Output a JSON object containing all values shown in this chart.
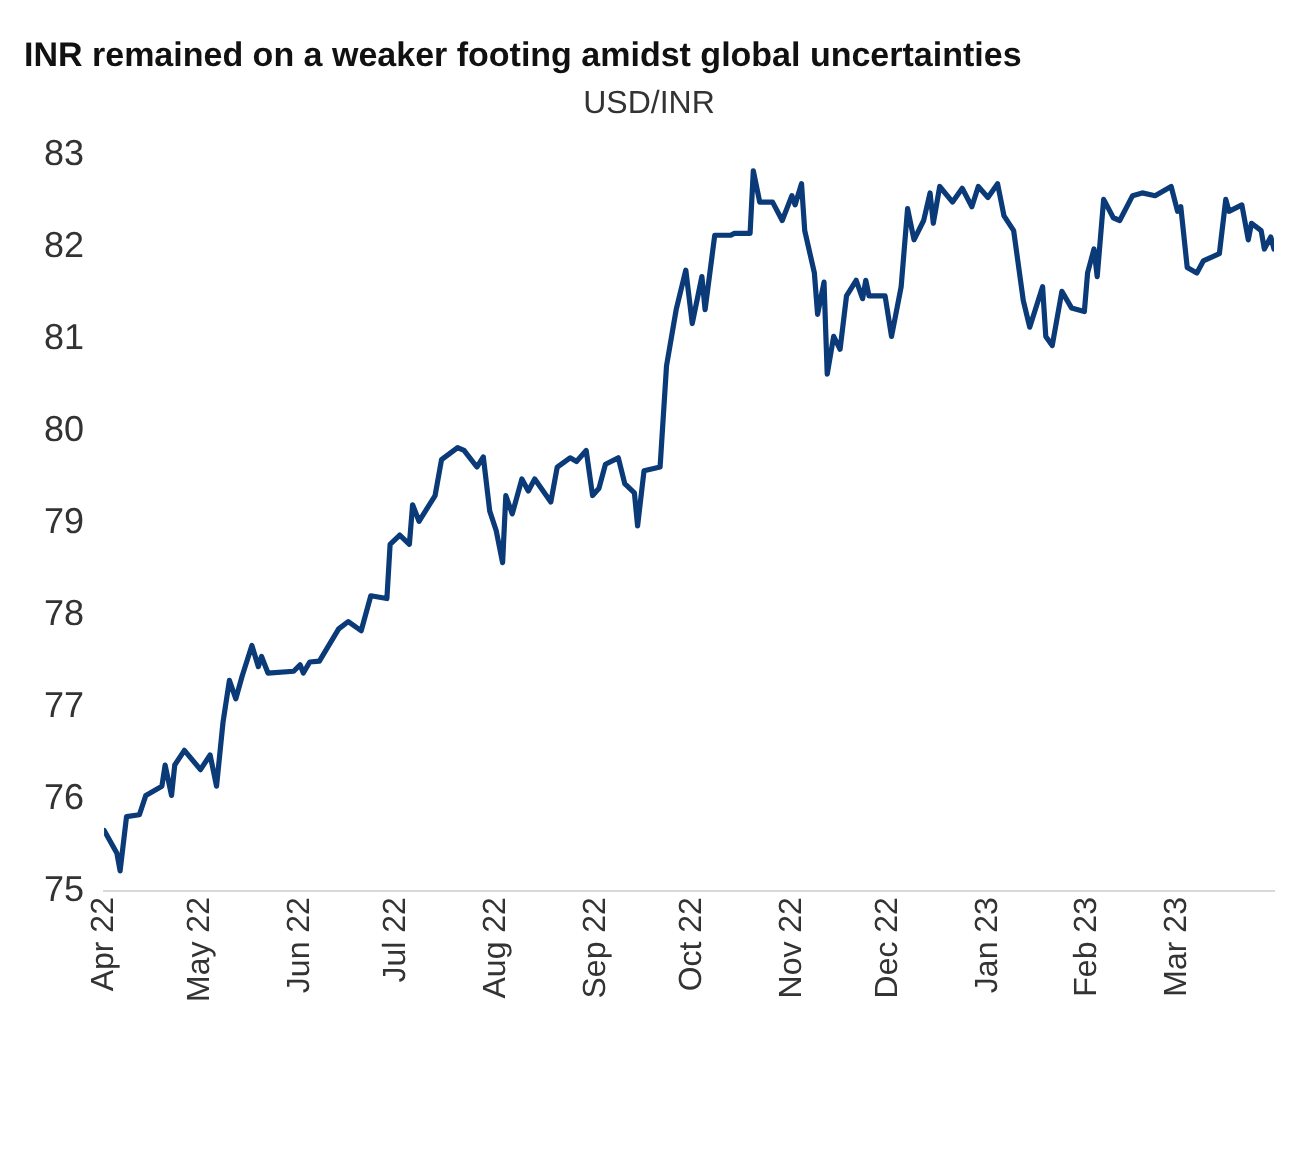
{
  "chart_data": {
    "type": "line",
    "title": "INR remained on a weaker footing amidst global uncertainties",
    "subtitle": "USD/INR",
    "x": [
      "2022-04-01",
      "2022-04-05",
      "2022-04-06",
      "2022-04-08",
      "2022-04-12",
      "2022-04-14",
      "2022-04-19",
      "2022-04-20",
      "2022-04-22",
      "2022-04-23",
      "2022-04-26",
      "2022-05-01",
      "2022-05-04",
      "2022-05-06",
      "2022-05-08",
      "2022-05-10",
      "2022-05-12",
      "2022-05-14",
      "2022-05-17",
      "2022-05-19",
      "2022-05-20",
      "2022-05-22",
      "2022-05-30",
      "2022-06-01",
      "2022-06-02",
      "2022-06-04",
      "2022-06-07",
      "2022-06-13",
      "2022-06-16",
      "2022-06-20",
      "2022-06-23",
      "2022-06-28",
      "2022-06-29",
      "2022-07-02",
      "2022-07-05",
      "2022-07-06",
      "2022-07-08",
      "2022-07-13",
      "2022-07-15",
      "2022-07-20",
      "2022-07-22",
      "2022-07-26",
      "2022-07-28",
      "2022-07-30",
      "2022-08-01",
      "2022-08-03",
      "2022-08-04",
      "2022-08-06",
      "2022-08-09",
      "2022-08-11",
      "2022-08-13",
      "2022-08-18",
      "2022-08-20",
      "2022-08-24",
      "2022-08-26",
      "2022-08-29",
      "2022-08-31",
      "2022-09-02",
      "2022-09-04",
      "2022-09-08",
      "2022-09-10",
      "2022-09-13",
      "2022-09-14",
      "2022-09-16",
      "2022-09-21",
      "2022-09-23",
      "2022-09-26",
      "2022-09-29",
      "2022-10-01",
      "2022-10-04",
      "2022-10-05",
      "2022-10-08",
      "2022-10-13",
      "2022-10-14",
      "2022-10-19",
      "2022-10-20",
      "2022-10-22",
      "2022-10-26",
      "2022-10-29",
      "2022-11-01",
      "2022-11-02",
      "2022-11-04",
      "2022-11-05",
      "2022-11-08",
      "2022-11-09",
      "2022-11-11",
      "2022-11-12",
      "2022-11-14",
      "2022-11-16",
      "2022-11-18",
      "2022-11-21",
      "2022-11-23",
      "2022-11-24",
      "2022-11-25",
      "2022-11-30",
      "2022-12-02",
      "2022-12-05",
      "2022-12-07",
      "2022-12-09",
      "2022-12-12",
      "2022-12-14",
      "2022-12-15",
      "2022-12-17",
      "2022-12-21",
      "2022-12-24",
      "2022-12-27",
      "2022-12-29",
      "2023-01-01",
      "2023-01-04",
      "2023-01-06",
      "2023-01-09",
      "2023-01-12",
      "2023-01-14",
      "2023-01-18",
      "2023-01-19",
      "2023-01-21",
      "2023-01-24",
      "2023-01-27",
      "2023-01-31",
      "2023-02-01",
      "2023-02-03",
      "2023-02-04",
      "2023-02-06",
      "2023-02-09",
      "2023-02-11",
      "2023-02-15",
      "2023-02-18",
      "2023-02-22",
      "2023-02-27",
      "2023-03-01",
      "2023-03-02",
      "2023-03-04",
      "2023-03-07",
      "2023-03-09",
      "2023-03-14",
      "2023-03-16",
      "2023-03-17",
      "2023-03-21",
      "2023-03-23",
      "2023-03-24",
      "2023-03-27",
      "2023-03-28",
      "2023-03-30",
      "2023-03-31"
    ],
    "series": [
      {
        "color": "#0b3a78",
        "values": [
          75.66,
          75.41,
          75.22,
          75.81,
          75.83,
          76.04,
          76.14,
          76.37,
          76.04,
          76.37,
          76.53,
          76.32,
          76.48,
          76.14,
          76.83,
          77.29,
          77.09,
          77.34,
          77.67,
          77.44,
          77.55,
          77.37,
          77.39,
          77.46,
          77.37,
          77.49,
          77.5,
          77.85,
          77.93,
          77.83,
          78.21,
          78.18,
          78.77,
          78.87,
          78.77,
          79.2,
          79.02,
          79.3,
          79.69,
          79.82,
          79.79,
          79.61,
          79.72,
          79.13,
          78.92,
          78.57,
          79.3,
          79.1,
          79.48,
          79.35,
          79.48,
          79.23,
          79.61,
          79.71,
          79.67,
          79.79,
          79.3,
          79.38,
          79.64,
          79.71,
          79.43,
          79.33,
          78.97,
          79.57,
          79.61,
          80.71,
          81.32,
          81.75,
          81.17,
          81.68,
          81.32,
          82.13,
          82.13,
          82.15,
          82.15,
          82.83,
          82.49,
          82.49,
          82.29,
          82.56,
          82.46,
          82.69,
          82.18,
          81.72,
          81.27,
          81.62,
          80.62,
          81.03,
          80.89,
          81.47,
          81.64,
          81.44,
          81.64,
          81.47,
          81.47,
          81.03,
          81.57,
          82.42,
          82.08,
          82.29,
          82.59,
          82.26,
          82.66,
          82.49,
          82.64,
          82.44,
          82.66,
          82.54,
          82.69,
          82.34,
          82.18,
          81.42,
          81.13,
          81.57,
          81.03,
          80.93,
          81.52,
          81.34,
          81.3,
          81.72,
          81.98,
          81.68,
          82.52,
          82.32,
          82.29,
          82.56,
          82.59,
          82.56,
          82.66,
          82.39,
          82.44,
          81.78,
          81.72,
          81.85,
          81.93,
          82.52,
          82.39,
          82.46,
          82.08,
          82.26,
          82.18,
          81.98,
          82.11,
          81.98
        ]
      }
    ],
    "xticks": [
      {
        "value": "2022-04-01",
        "label": "Apr 22"
      },
      {
        "value": "2022-05-01",
        "label": "May 22"
      },
      {
        "value": "2022-06-01",
        "label": "Jun 22"
      },
      {
        "value": "2022-07-01",
        "label": "Jul 22"
      },
      {
        "value": "2022-08-01",
        "label": "Aug 22"
      },
      {
        "value": "2022-09-01",
        "label": "Sep 22"
      },
      {
        "value": "2022-10-01",
        "label": "Oct 22"
      },
      {
        "value": "2022-11-01",
        "label": "Nov 22"
      },
      {
        "value": "2022-12-01",
        "label": "Dec 22"
      },
      {
        "value": "2023-01-01",
        "label": "Jan 23"
      },
      {
        "value": "2023-02-01",
        "label": "Feb 23"
      },
      {
        "value": "2023-03-01",
        "label": "Mar 23"
      }
    ],
    "xlim": [
      "2022-04-01",
      "2023-03-31"
    ],
    "ylim": [
      75,
      83
    ],
    "yticks": [
      75,
      76,
      77,
      78,
      79,
      80,
      81,
      82,
      83
    ],
    "grid": false,
    "legend": false,
    "marker": "none",
    "line_style": "solid"
  }
}
